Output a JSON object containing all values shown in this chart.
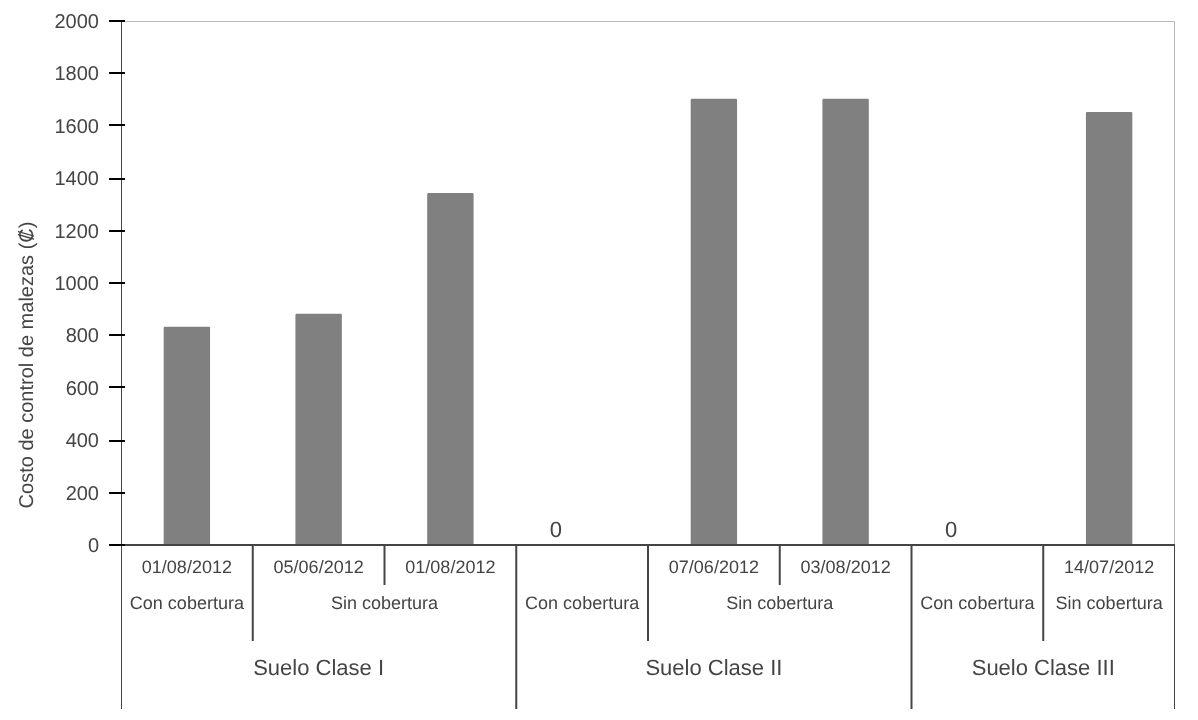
{
  "chart_data": {
    "type": "bar",
    "ylabel": "Costo de control de malezas (₡)",
    "categories": [
      "01/08/2012",
      "05/06/2012",
      "01/08/2012",
      null,
      "07/06/2012",
      "03/08/2012",
      null,
      "14/07/2012"
    ],
    "values": [
      830,
      880,
      1340,
      0,
      1700,
      1700,
      0,
      1650
    ],
    "value_labels": [
      null,
      null,
      null,
      "0",
      null,
      null,
      "0",
      null
    ],
    "color": "#808080",
    "ylim": [
      0,
      2000
    ],
    "yticks": [
      0,
      200,
      400,
      600,
      800,
      1000,
      1200,
      1400,
      1600,
      1800,
      2000
    ],
    "grid": false,
    "annotations": [
      "Con cobertura",
      "Sin cobertura",
      "Suelo Clase I",
      "Con cobertura",
      "Sin cobertura",
      "Suelo Clase II",
      "Con cobertura",
      "Sin cobertura",
      "Suelo Clase III"
    ]
  }
}
